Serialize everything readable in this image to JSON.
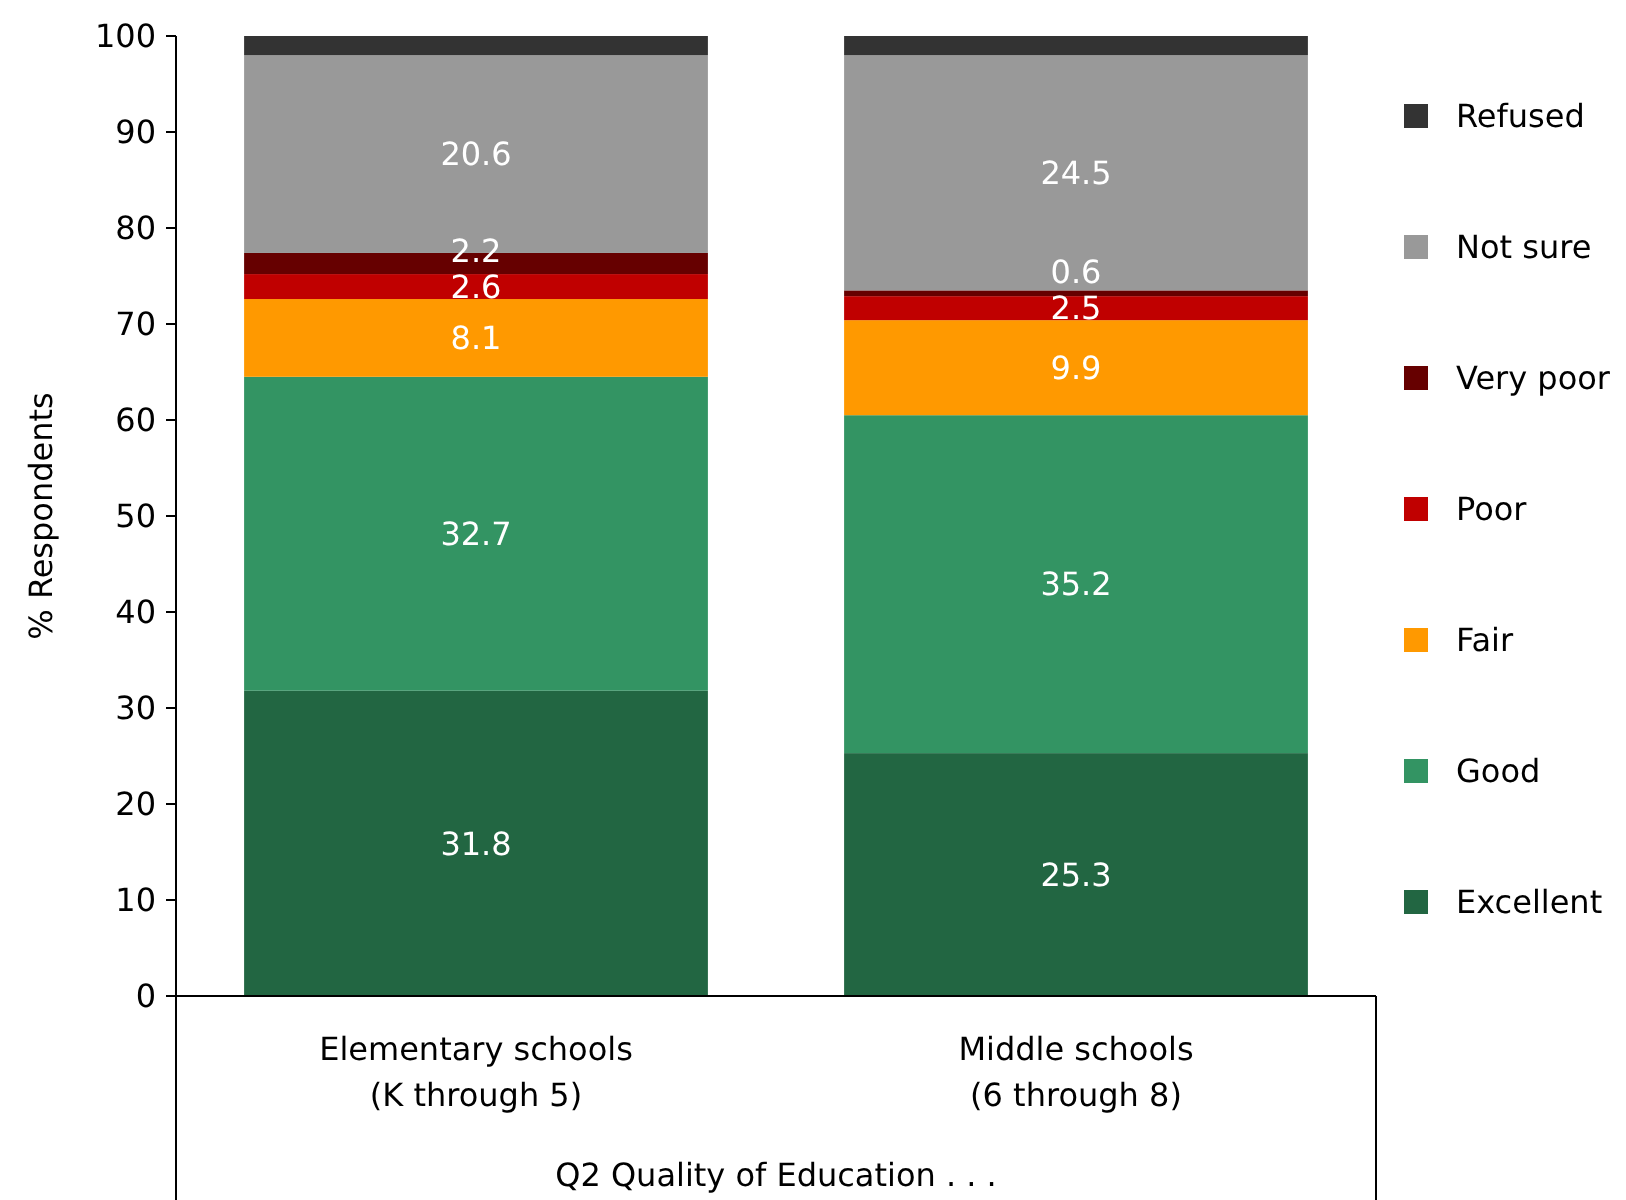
{
  "chart_data": {
    "type": "bar",
    "stacked": true,
    "categories": [
      "Elementary schools\n(K through 5)",
      "Middle schools\n(6 through 8)"
    ],
    "xlabel": "Q2 Quality of Education . . .",
    "ylabel": "% Respondents",
    "ylim": [
      0,
      100
    ],
    "yticks": [
      0,
      10,
      20,
      30,
      40,
      50,
      60,
      70,
      80,
      90,
      100
    ],
    "grid": false,
    "legend": "right",
    "series": [
      {
        "name": "Excellent",
        "color": "#226642",
        "values": [
          31.8,
          25.3
        ],
        "value_labels": [
          "31.8",
          "25.3"
        ]
      },
      {
        "name": "Good",
        "color": "#339463",
        "values": [
          32.7,
          35.2
        ],
        "value_labels": [
          "32.7",
          "35.2"
        ]
      },
      {
        "name": "Fair",
        "color": "#ff9900",
        "values": [
          8.1,
          9.9
        ],
        "value_labels": [
          "8.1",
          "9.9"
        ]
      },
      {
        "name": "Poor",
        "color": "#c00000",
        "values": [
          2.6,
          2.5
        ],
        "value_labels": [
          "2.6",
          "2.5"
        ]
      },
      {
        "name": "Very poor",
        "color": "#660000",
        "values": [
          2.2,
          0.6
        ],
        "value_labels": [
          "2.2",
          "0.6"
        ]
      },
      {
        "name": "Not sure",
        "color": "#999999",
        "values": [
          20.6,
          24.5
        ],
        "value_labels": [
          "20.6",
          "24.5"
        ]
      },
      {
        "name": "Refused",
        "color": "#333333",
        "values": [
          2.0,
          2.0
        ],
        "value_labels": [
          null,
          null
        ]
      }
    ]
  }
}
